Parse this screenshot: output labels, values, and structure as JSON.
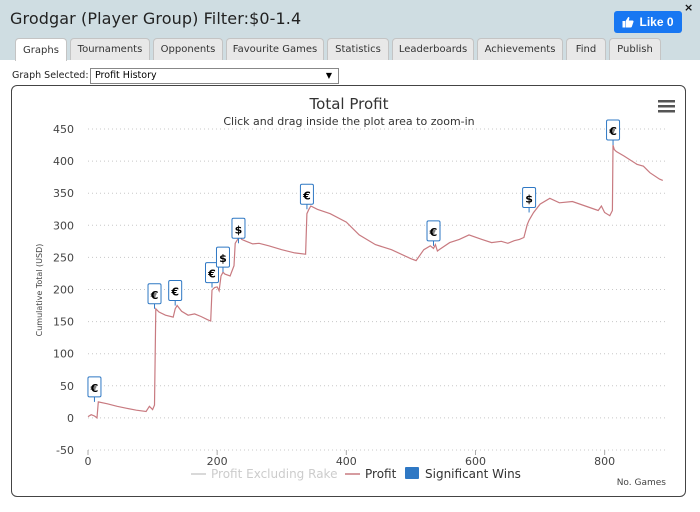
{
  "window": {
    "title": "Grodgar (Player Group) Filter:$0-1.4",
    "like_label": "Like 0",
    "close_label": "×"
  },
  "tabs": [
    {
      "label": "Graphs",
      "active": true
    },
    {
      "label": "Tournaments"
    },
    {
      "label": "Opponents"
    },
    {
      "label": "Favourite Games"
    },
    {
      "label": "Statistics"
    },
    {
      "label": "Leaderboards"
    },
    {
      "label": "Achievements"
    },
    {
      "label": "Find"
    },
    {
      "label": "Publish"
    }
  ],
  "graph_select": {
    "label": "Graph Selected:",
    "value": "Profit History"
  },
  "colors": {
    "profit_line": "#c87a80",
    "rake_line": "#cccccc",
    "significant_win": "#2f78c4",
    "grid": "#c8c8c8",
    "titlebar": "#cfdde2"
  },
  "chart_data": {
    "type": "line",
    "title": "Total Profit",
    "subtitle": "Click and drag inside the plot area to zoom-in",
    "ylabel": "Cumulative Total (USD)",
    "xlabel": "No. Games",
    "ylim": [
      -50,
      450
    ],
    "xlim": [
      0,
      895
    ],
    "yticks": [
      -50,
      0,
      50,
      100,
      150,
      200,
      250,
      300,
      350,
      400,
      450
    ],
    "xticks": [
      0,
      200,
      400,
      600,
      800
    ],
    "grid": "horizontal dotted",
    "legend_position": "bottom",
    "legend": [
      "Profit Excluding Rake",
      "Profit",
      "Significant Wins"
    ],
    "menu_icon": "hamburger-icon",
    "series": [
      {
        "name": "Profit",
        "x": [
          0,
          5,
          10,
          14,
          16,
          30,
          45,
          60,
          75,
          90,
          95,
          100,
          103,
          105,
          110,
          120,
          132,
          135,
          138,
          145,
          155,
          165,
          175,
          185,
          190,
          192,
          196,
          200,
          203,
          206,
          209,
          212,
          220,
          226,
          228,
          233,
          236,
          238,
          245,
          255,
          265,
          280,
          300,
          320,
          337,
          339,
          342,
          345,
          355,
          375,
          400,
          420,
          445,
          470,
          500,
          508,
          520,
          530,
          535,
          538,
          541,
          545,
          560,
          575,
          590,
          610,
          625,
          640,
          650,
          660,
          668,
          675,
          680,
          683,
          687,
          690,
          700,
          715,
          730,
          750,
          770,
          790,
          795,
          800,
          808,
          812,
          813,
          815,
          818,
          830,
          850,
          860,
          870,
          885,
          890
        ],
        "y": [
          2,
          5,
          3,
          0,
          25,
          22,
          18,
          15,
          12,
          10,
          18,
          13,
          20,
          170,
          165,
          160,
          157,
          170,
          175,
          166,
          160,
          162,
          158,
          153,
          151,
          199,
          203,
          204,
          198,
          221,
          227,
          224,
          221,
          237,
          272,
          280,
          282,
          278,
          275,
          271,
          272,
          268,
          262,
          257,
          255,
          318,
          325,
          330,
          325,
          318,
          305,
          285,
          270,
          262,
          248,
          245,
          262,
          268,
          264,
          270,
          260,
          263,
          273,
          278,
          285,
          278,
          273,
          275,
          272,
          276,
          278,
          281,
          301,
          308,
          315,
          320,
          333,
          342,
          335,
          337,
          330,
          323,
          330,
          320,
          315,
          323,
          425,
          418,
          415,
          408,
          395,
          392,
          382,
          372,
          370
        ]
      }
    ],
    "significant_wins": [
      {
        "symbol": "€",
        "x": 10,
        "y": 25
      },
      {
        "symbol": "€",
        "x": 103,
        "y": 170
      },
      {
        "symbol": "€",
        "x": 135,
        "y": 175
      },
      {
        "symbol": "€",
        "x": 192,
        "y": 203
      },
      {
        "symbol": "$",
        "x": 209,
        "y": 227
      },
      {
        "symbol": "$",
        "x": 233,
        "y": 272
      },
      {
        "symbol": "€",
        "x": 339,
        "y": 325
      },
      {
        "symbol": "€",
        "x": 535,
        "y": 268
      },
      {
        "symbol": "$",
        "x": 683,
        "y": 320
      },
      {
        "symbol": "€",
        "x": 813,
        "y": 425
      }
    ]
  }
}
